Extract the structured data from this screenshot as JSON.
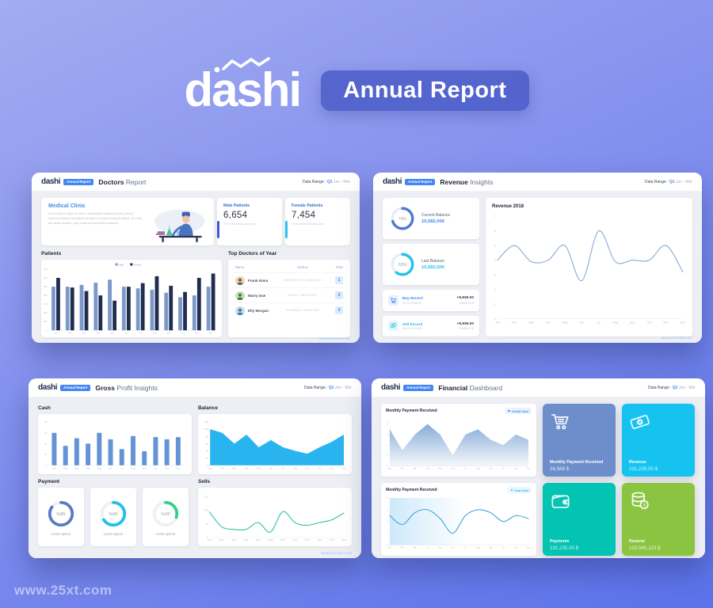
{
  "watermark": "www.25xt.com",
  "hero": {
    "logo": "dashi",
    "badge": "Annual Report"
  },
  "common": {
    "logo": "dashi",
    "logo_badge": "Annual Report",
    "data_range_label": "Data Range :",
    "data_range_quarter": "Q1",
    "data_range_period": "Jan - Mar",
    "site": "www.premast.com"
  },
  "panels": {
    "doctors": {
      "title_bold": "Doctors",
      "title_rest": "Report",
      "clinic": {
        "title": "Medical Clinic",
        "body": "Lorem ipsum dolor sit amet, consectetur adipiscing elit, sed do eiusmod tempor incididunt ut labore et dolore magna aliqua. Ut enim ad minim veniam, quis nostrud exercitation ullamco."
      },
      "male": {
        "title": "Male Patients",
        "value": "6,654",
        "subtext": "20 % More than last year",
        "accent": "#3b5bd6"
      },
      "female": {
        "title": "Female Patients",
        "value": "7,454",
        "subtext": "30 % lower than last year",
        "accent": "#2bc4f0"
      },
      "patients_label": "Patients",
      "top_doctors_label": "Top Doctors of Year",
      "table": {
        "headers": [
          "Name",
          "Section",
          "Rate"
        ],
        "rows": [
          {
            "name": "Frank Kiera",
            "section": "EMERGENCY MEDICINE",
            "rate": "1"
          },
          {
            "name": "Marty Due",
            "section": "FAMILY MEDICINE",
            "rate": "2"
          },
          {
            "name": "Elly Morgan",
            "section": "INTERNAL MEDICINE",
            "rate": "3"
          }
        ]
      }
    },
    "revenue": {
      "title_bold": "Revenue",
      "title_rest": "Insights",
      "current": {
        "label": "Current Balance",
        "value": "15,582,000",
        "value_color": "#3f86f2"
      },
      "last": {
        "label": "Last Balance",
        "value": "15,582,000",
        "value_color": "#24c1ee"
      },
      "buy": {
        "label": "Buy Record",
        "time": "09-23 03:55:25",
        "amount": "+9,836.00",
        "total": "50566.23 $",
        "color": "#3f86f2",
        "bg": "#e7f0fd"
      },
      "sell": {
        "label": "Sell Record",
        "time": "09-23 03:55:25",
        "amount": "+9,836.00",
        "total": "50566.23 $",
        "color": "#26bfe8",
        "bg": "#e2f6fd"
      },
      "chart_title": "Revenue 2018"
    },
    "gross": {
      "title_bold": "Gross",
      "title_rest": "Profit Insights",
      "cash_label": "Cash",
      "balance_label": "Balance",
      "payment_label": "Payment",
      "sells_label": "Sells",
      "donut_caption": "Lorem Ipsem"
    },
    "financial": {
      "title_bold": "Financial",
      "title_rest": "Dashboard",
      "chart1_title": "Monthly Payment Received",
      "chart1_badge": {
        "label": "Credit Card",
        "color": "#4285f4",
        "bg": "#eaf2fe"
      },
      "chart2_title": "Monthly Payment Received",
      "chart2_badge": {
        "label": "Visa Card",
        "color": "#29b6f6",
        "bg": "#e6f7fe"
      },
      "cards": [
        {
          "label": "Monthly Payment Received",
          "value": "36,568 $",
          "color": "#6d8ecb"
        },
        {
          "label": "Revenue",
          "value": "231,235.00 $",
          "color": "#16c3f0"
        },
        {
          "label": "Payments",
          "value": "231,235.00 $",
          "color": "#03c3b3"
        },
        {
          "label": "Reserve",
          "value": "103,565,123 $",
          "color": "#8ac440"
        }
      ]
    }
  },
  "chart_data": [
    {
      "id": "patients_bar",
      "type": "grouped_bar",
      "legend": true,
      "x": [
        "Jan",
        "Feb",
        "Mar",
        "Apr",
        "May",
        "Jun",
        "Jul",
        "Aug",
        "Sep",
        "Oct",
        "Nov",
        "Dec"
      ],
      "series": [
        {
          "name": "Male",
          "color": "#7b98c8",
          "values": [
            500,
            500,
            520,
            545,
            580,
            500,
            480,
            465,
            430,
            380,
            400,
            500
          ]
        },
        {
          "name": "Female",
          "color": "#1f2d4e",
          "values": [
            600,
            490,
            450,
            400,
            340,
            500,
            540,
            620,
            510,
            440,
            600,
            650
          ]
        }
      ],
      "ylim": [
        0,
        700
      ],
      "yticks": [
        0,
        100,
        200,
        300,
        400,
        500,
        600,
        700
      ],
      "fs": 2.8,
      "title": "Patients",
      "xlabel": "",
      "ylabel": ""
    },
    {
      "id": "revenue_line",
      "type": "line",
      "x": [
        "Jan",
        "Feb",
        "Mar",
        "Apr",
        "May",
        "Jun",
        "Jul",
        "Aug",
        "Sep",
        "Oct",
        "Nov",
        "Dec"
      ],
      "values": [
        4,
        5,
        3.9,
        4,
        5,
        2.6,
        6,
        3.9,
        4,
        4,
        5,
        3.2
      ],
      "ylim": [
        0,
        7
      ],
      "yticks": [
        0,
        1,
        2,
        3,
        4,
        5,
        6,
        7
      ],
      "color": "#8aa9d6",
      "fs": 3.8,
      "title": "Revenue 2018"
    },
    {
      "id": "cash_bar",
      "type": "bar",
      "x": [
        "Jan",
        "Feb",
        "Mar",
        "Apr",
        "May",
        "Jun",
        "Jul",
        "Aug",
        "Sep",
        "Oct",
        "Nov",
        "Dec"
      ],
      "values": [
        30,
        18,
        25,
        20,
        30,
        24,
        15,
        27,
        13,
        26,
        24,
        26
      ],
      "ylim": [
        0,
        40
      ],
      "yticks": [
        0,
        10,
        20,
        30,
        40
      ],
      "color": "#6494d6",
      "fs": 3,
      "title": "Cash"
    },
    {
      "id": "balance_area",
      "type": "area",
      "x": [
        "Jan",
        "Feb",
        "Mar",
        "Apr",
        "May",
        "Jun",
        "Jul",
        "Aug",
        "Sep",
        "Oct",
        "Nov",
        "Dec"
      ],
      "values": [
        100,
        90,
        60,
        85,
        50,
        70,
        50,
        40,
        32,
        50,
        65,
        85
      ],
      "ylim": [
        0,
        120
      ],
      "yticks": [
        0,
        20,
        40,
        60,
        80,
        100,
        120
      ],
      "color": "#29b4f0",
      "fs": 3,
      "title": "Balance"
    },
    {
      "id": "donut_current",
      "type": "donut",
      "value": 70,
      "label": "70%",
      "color": "#4c7bd1",
      "track": "#e9edf2"
    },
    {
      "id": "donut_last",
      "type": "donut",
      "value": 60,
      "label": "60%",
      "color": "#24c1ee",
      "track": "#e9edf2"
    },
    {
      "id": "donut_p1",
      "type": "donut",
      "value": 85,
      "label": "%85",
      "color": "#5b7ac2",
      "track": "#edf0f4"
    },
    {
      "id": "donut_p2",
      "type": "donut",
      "value": 66,
      "label": "%66",
      "color": "#1fc0ea",
      "track": "#edf0f4"
    },
    {
      "id": "donut_p3",
      "type": "donut",
      "value": 30,
      "label": "%30",
      "color": "#2fd08a",
      "track": "#edf0f4"
    },
    {
      "id": "sells_line",
      "type": "line",
      "x": [
        "2010",
        "2011",
        "2012",
        "2013",
        "2014",
        "2015",
        "2016",
        "2017",
        "2018",
        "2019",
        "2020",
        "2021"
      ],
      "values": [
        95,
        40,
        30,
        30,
        55,
        20,
        95,
        55,
        45,
        55,
        65,
        90
      ],
      "ylim": [
        0,
        150
      ],
      "yticks": [
        0,
        50,
        100,
        150
      ],
      "color": "#33c3a9",
      "fs": 2.7,
      "title": "Sells"
    },
    {
      "id": "fin_area",
      "type": "area",
      "gradient": true,
      "x": [
        "Jan",
        "Feb",
        "Mar",
        "Apr",
        "May",
        "Jun",
        "Jul",
        "Aug",
        "Sep",
        "Oct",
        "Nov",
        "Dec"
      ],
      "values": [
        7,
        3,
        6,
        8,
        6,
        2,
        6,
        7,
        5,
        4,
        6,
        5
      ],
      "ylim": [
        0,
        9
      ],
      "yticks": [
        0,
        2,
        4,
        6,
        8
      ],
      "color": "#7ba3d4",
      "fs": 2.7,
      "title": "Monthly Payment Received (Credit Card)"
    },
    {
      "id": "fin_line",
      "type": "line",
      "bgwash": "#9ed2f5",
      "x": [
        "Jan",
        "Feb",
        "Mar",
        "Apr",
        "May",
        "Jun",
        "Jul",
        "Aug",
        "Sep",
        "Oct",
        "Nov",
        "Dec"
      ],
      "values": [
        5,
        3.5,
        5.5,
        6,
        4.5,
        2,
        5,
        6,
        5.5,
        4,
        5,
        4.5
      ],
      "ylim": [
        0,
        8
      ],
      "yticks": [
        0,
        2,
        4,
        6,
        8
      ],
      "color": "#41a5dd",
      "fs": 2.7,
      "title": "Monthly Payment Received (Visa Card)"
    }
  ]
}
